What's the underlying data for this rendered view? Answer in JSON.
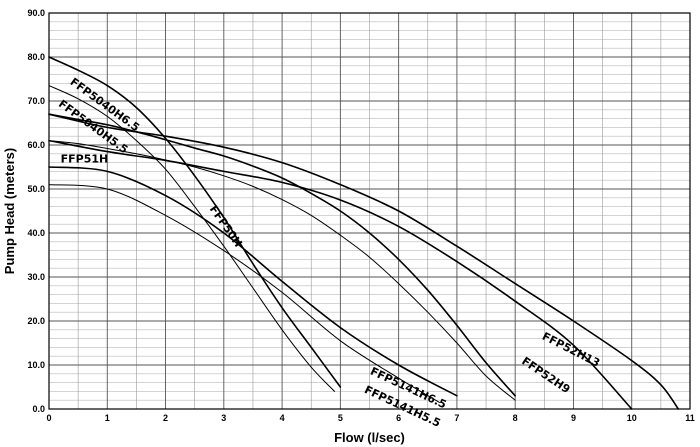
{
  "chart_data": {
    "type": "line",
    "xlabel": "Flow (l/sec)",
    "ylabel": "Pump Head (meters)",
    "xlim": [
      0,
      11
    ],
    "ylim": [
      0,
      90
    ],
    "x_ticks": [
      "0",
      "1",
      "2",
      "3",
      "4",
      "5",
      "6",
      "7",
      "8",
      "9",
      "10",
      "11"
    ],
    "y_ticks": [
      "0.0",
      "10.0",
      "20.0",
      "30.0",
      "40.0",
      "50.0",
      "60.0",
      "70.0",
      "80.0",
      "90.0"
    ],
    "grid": true,
    "series": [
      {
        "name": "FFP5040H6.5",
        "stroke_width": 1.6,
        "label": {
          "x": 0.35,
          "y": 74,
          "angle": 36
        },
        "points": [
          [
            0,
            80
          ],
          [
            0.5,
            77
          ],
          [
            1,
            73.5
          ],
          [
            1.5,
            68.5
          ],
          [
            2,
            61.5
          ],
          [
            2.5,
            53
          ],
          [
            3,
            43.5
          ],
          [
            3.5,
            33
          ],
          [
            4,
            23
          ],
          [
            4.5,
            14
          ],
          [
            5,
            5
          ]
        ]
      },
      {
        "name": "FFP5040H5.5",
        "stroke_width": 1.0,
        "label": {
          "x": 0.15,
          "y": 69,
          "angle": 36
        },
        "points": [
          [
            0,
            73.5
          ],
          [
            0.5,
            70.5
          ],
          [
            1,
            66.5
          ],
          [
            1.5,
            61
          ],
          [
            2,
            54.5
          ],
          [
            2.5,
            46
          ],
          [
            3,
            37
          ],
          [
            3.5,
            27.5
          ],
          [
            4,
            18
          ],
          [
            4.5,
            9.5
          ],
          [
            4.9,
            4
          ]
        ]
      },
      {
        "name": "FFP50H",
        "stroke_width": 1.6,
        "label": {
          "x": 2.75,
          "y": 45.5,
          "angle": 55
        },
        "points": [
          [
            0,
            67
          ],
          [
            0.5,
            65.8
          ],
          [
            1,
            64.6
          ],
          [
            1.5,
            63
          ],
          [
            2,
            61.2
          ],
          [
            2.5,
            59.3
          ],
          [
            3,
            57.5
          ],
          [
            3.5,
            55.2
          ],
          [
            4,
            52.5
          ],
          [
            4.5,
            49
          ],
          [
            5,
            45
          ],
          [
            5.5,
            40
          ],
          [
            6,
            34
          ],
          [
            6.5,
            27
          ],
          [
            7,
            19
          ],
          [
            7.5,
            10.5
          ],
          [
            8,
            3
          ]
        ]
      },
      {
        "name": "FFP51H",
        "stroke_width": 1.0,
        "label": {
          "x": 0.2,
          "y": 56,
          "angle": 0
        },
        "points": [
          [
            0,
            61
          ],
          [
            0.5,
            60.3
          ],
          [
            1,
            59.2
          ],
          [
            1.5,
            58
          ],
          [
            2,
            56.6
          ],
          [
            2.5,
            55
          ],
          [
            3,
            53
          ],
          [
            3.5,
            50.6
          ],
          [
            4,
            47.6
          ],
          [
            4.5,
            44
          ],
          [
            5,
            39.5
          ],
          [
            5.5,
            34.5
          ],
          [
            6,
            28.5
          ],
          [
            6.5,
            22
          ],
          [
            7,
            15
          ],
          [
            7.5,
            7.5
          ],
          [
            8,
            2
          ]
        ]
      },
      {
        "name": "FFP52H13",
        "stroke_width": 1.6,
        "label": {
          "x": 8.45,
          "y": 16,
          "angle": 27
        },
        "points": [
          [
            0,
            67
          ],
          [
            1,
            64
          ],
          [
            2,
            62
          ],
          [
            3,
            59.5
          ],
          [
            4,
            56
          ],
          [
            5,
            51
          ],
          [
            6,
            45
          ],
          [
            7,
            37
          ],
          [
            8,
            28.5
          ],
          [
            9,
            20
          ],
          [
            10,
            11
          ],
          [
            10.5,
            5.5
          ],
          [
            10.8,
            0
          ]
        ]
      },
      {
        "name": "FFP52H9",
        "stroke_width": 1.6,
        "label": {
          "x": 8.1,
          "y": 10.5,
          "angle": 34
        },
        "points": [
          [
            0,
            61
          ],
          [
            1,
            58.5
          ],
          [
            2,
            56.5
          ],
          [
            3,
            54
          ],
          [
            4,
            51.5
          ],
          [
            5,
            47.5
          ],
          [
            6,
            41.5
          ],
          [
            7,
            33.5
          ],
          [
            8,
            24.5
          ],
          [
            9,
            14.5
          ],
          [
            10,
            0
          ]
        ]
      },
      {
        "name": "FFP5141H6.5",
        "stroke_width": 1.6,
        "label": {
          "x": 5.5,
          "y": 8,
          "angle": 25
        },
        "points": [
          [
            0,
            55
          ],
          [
            1,
            54
          ],
          [
            2,
            48.5
          ],
          [
            3,
            40
          ],
          [
            4,
            29
          ],
          [
            5,
            18.5
          ],
          [
            6,
            10
          ],
          [
            7,
            3
          ]
        ]
      },
      {
        "name": "FFP5141H5.5",
        "stroke_width": 1.0,
        "label": {
          "x": 5.4,
          "y": 3.8,
          "angle": 25
        },
        "points": [
          [
            0,
            51
          ],
          [
            1,
            50
          ],
          [
            2,
            44
          ],
          [
            3,
            36
          ],
          [
            4,
            26.5
          ],
          [
            5,
            15.5
          ],
          [
            6,
            7
          ],
          [
            6.7,
            1.5
          ]
        ]
      }
    ]
  }
}
